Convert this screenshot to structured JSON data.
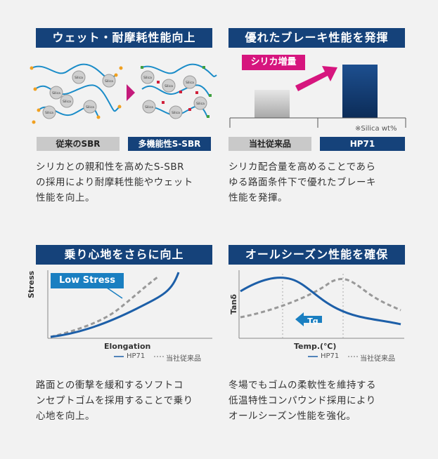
{
  "panels": {
    "wet": {
      "title": "ウェット・耐摩耗性能向上",
      "label_left": "従来のSBR",
      "label_right": "多機能性S-SBR",
      "silica_label": "Silica",
      "desc_lines": [
        "シリカとの親和性を高めたS-SBR",
        "の採用により耐摩耗性能やウェット",
        "性能を向上。"
      ]
    },
    "brake": {
      "title": "優れたブレーキ性能を発揮",
      "arrow_label": "シリカ増量",
      "note": "※Silica wt%",
      "label_left": "当社従来品",
      "label_right": "HP71",
      "desc_lines": [
        "シリカ配合量を高めることであら",
        "ゆる路面条件下で優れたブレーキ",
        "性能を発揮。"
      ]
    },
    "ride": {
      "title": "乗り心地をさらに向上",
      "callout": "Low Stress",
      "ylabel": "Stress",
      "xlabel": "Elongation",
      "legend_hp": "HP71",
      "legend_old": "当社従来品",
      "desc_lines": [
        "路面との衝撃を緩和するソフトコ",
        "ンセプトゴムを採用することで乗り",
        "心地を向上。"
      ]
    },
    "season": {
      "title": "オールシーズン性能を確保",
      "tg": "Tg",
      "ylabel": "Tanδ",
      "xlabel": "Temp.(℃)",
      "legend_hp": "HP71",
      "legend_old": "当社従来品",
      "desc_lines": [
        "冬場でもゴムの柔軟性を維持する",
        "低温特性コンパウンド採用により",
        "オールシーズン性能を強化。"
      ]
    }
  },
  "colors": {
    "navy": "#15427a",
    "blue": "#1d5fa8",
    "magenta": "#d6157e",
    "gray": "#999999",
    "cyan": "#1a7fc1"
  }
}
